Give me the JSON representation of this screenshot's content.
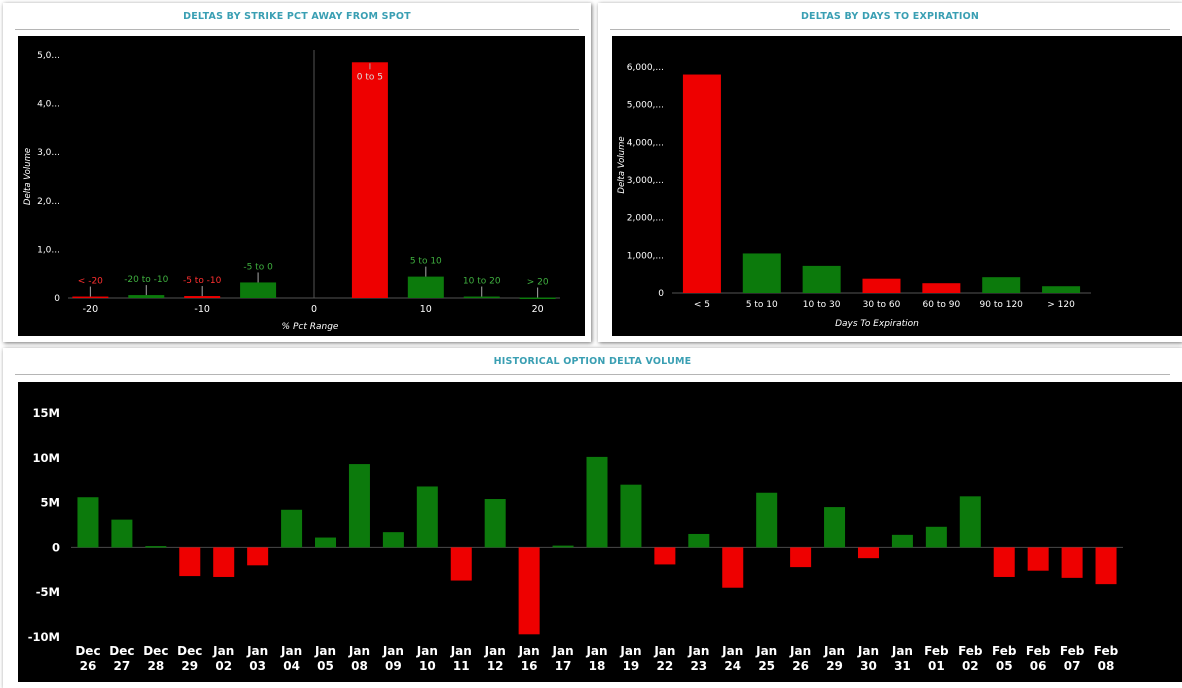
{
  "colors": {
    "up": "#0c7a0c",
    "down": "#ee0000",
    "title": "#3a9fb3",
    "plot_bg": "#000000"
  },
  "panels": {
    "strike": {
      "title": "DELTAS BY STRIKE PCT AWAY FROM SPOT"
    },
    "expiration": {
      "title": "DELTAS BY DAYS TO EXPIRATION"
    },
    "history": {
      "title": "HISTORICAL OPTION DELTA VOLUME"
    }
  },
  "chart_data": [
    {
      "type": "bar",
      "title": "DELTAS BY STRIKE PCT AWAY FROM SPOT",
      "xlabel": "% Pct Range",
      "ylabel": "Delta Volume",
      "xlim": [
        -22,
        22
      ],
      "ylim": [
        0,
        5000000
      ],
      "x_ticks": [
        -20,
        -10,
        0,
        10,
        20
      ],
      "y_ticks": [
        {
          "value": 0,
          "label": "0"
        },
        {
          "value": 1000000,
          "label": "1,0..."
        },
        {
          "value": 2000000,
          "label": "2,0..."
        },
        {
          "value": 3000000,
          "label": "3,0..."
        },
        {
          "value": 4000000,
          "label": "4,0..."
        },
        {
          "value": 5000000,
          "label": "5,0..."
        }
      ],
      "bars": [
        {
          "label": "< -20",
          "x": -20,
          "value": 30000,
          "sign": "down"
        },
        {
          "label": "-20 to -10",
          "x": -15,
          "value": 60000,
          "sign": "up"
        },
        {
          "label": "-5 to -10",
          "x": -10,
          "value": 40000,
          "sign": "down"
        },
        {
          "label": "-5 to 0",
          "x": -5,
          "value": 320000,
          "sign": "up"
        },
        {
          "label": "0 to 5",
          "x": 5,
          "value": 4850000,
          "sign": "down"
        },
        {
          "label": "5 to 10",
          "x": 10,
          "value": 440000,
          "sign": "up"
        },
        {
          "label": "10 to 20",
          "x": 15,
          "value": 30000,
          "sign": "up"
        },
        {
          "label": "> 20",
          "x": 20,
          "value": 10000,
          "sign": "up"
        }
      ]
    },
    {
      "type": "bar",
      "title": "DELTAS BY DAYS TO EXPIRATION",
      "xlabel": "Days To Expiration",
      "ylabel": "Delta Volume",
      "ylim": [
        0,
        6000000
      ],
      "y_ticks": [
        {
          "value": 0,
          "label": "0"
        },
        {
          "value": 1000000,
          "label": "1,000,..."
        },
        {
          "value": 2000000,
          "label": "2,000,..."
        },
        {
          "value": 3000000,
          "label": "3,000,..."
        },
        {
          "value": 4000000,
          "label": "4,000,..."
        },
        {
          "value": 5000000,
          "label": "5,000,..."
        },
        {
          "value": 6000000,
          "label": "6,000,..."
        }
      ],
      "categories": [
        "< 5",
        "5 to 10",
        "10 to 30",
        "30 to 60",
        "60 to 90",
        "90 to 120",
        "> 120"
      ],
      "values": [
        5800000,
        1050000,
        720000,
        380000,
        260000,
        420000,
        180000
      ],
      "signs": [
        "down",
        "up",
        "up",
        "down",
        "down",
        "up",
        "up"
      ]
    },
    {
      "type": "bar",
      "title": "HISTORICAL OPTION DELTA VOLUME",
      "ylim": [
        -10000000,
        15000000
      ],
      "y_ticks": [
        {
          "value": 15000000,
          "label": "15M"
        },
        {
          "value": 10000000,
          "label": "10M"
        },
        {
          "value": 5000000,
          "label": "5M"
        },
        {
          "value": 0,
          "label": "0"
        },
        {
          "value": -5000000,
          "label": "-5M"
        },
        {
          "value": -10000000,
          "label": "-10M"
        }
      ],
      "categories": [
        [
          "Dec",
          "26"
        ],
        [
          "Dec",
          "27"
        ],
        [
          "Dec",
          "28"
        ],
        [
          "Dec",
          "29"
        ],
        [
          "Jan",
          "02"
        ],
        [
          "Jan",
          "03"
        ],
        [
          "Jan",
          "04"
        ],
        [
          "Jan",
          "05"
        ],
        [
          "Jan",
          "08"
        ],
        [
          "Jan",
          "09"
        ],
        [
          "Jan",
          "10"
        ],
        [
          "Jan",
          "11"
        ],
        [
          "Jan",
          "12"
        ],
        [
          "Jan",
          "16"
        ],
        [
          "Jan",
          "17"
        ],
        [
          "Jan",
          "18"
        ],
        [
          "Jan",
          "19"
        ],
        [
          "Jan",
          "22"
        ],
        [
          "Jan",
          "23"
        ],
        [
          "Jan",
          "24"
        ],
        [
          "Jan",
          "25"
        ],
        [
          "Jan",
          "26"
        ],
        [
          "Jan",
          "29"
        ],
        [
          "Jan",
          "30"
        ],
        [
          "Jan",
          "31"
        ],
        [
          "Feb",
          "01"
        ],
        [
          "Feb",
          "02"
        ],
        [
          "Feb",
          "05"
        ],
        [
          "Feb",
          "06"
        ],
        [
          "Feb",
          "07"
        ],
        [
          "Feb",
          "08"
        ]
      ],
      "values": [
        5600000,
        3100000,
        150000,
        -3200000,
        -3300000,
        -2000000,
        4200000,
        1100000,
        9300000,
        1700000,
        6800000,
        -3700000,
        5400000,
        -9700000,
        200000,
        10100000,
        7000000,
        -1900000,
        1500000,
        -4500000,
        6100000,
        -2200000,
        4500000,
        -1200000,
        1400000,
        2300000,
        5700000,
        -3300000,
        -2600000,
        -3400000,
        -4100000
      ]
    }
  ]
}
